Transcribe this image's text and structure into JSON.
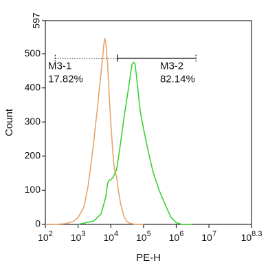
{
  "chart_data": {
    "type": "histogram",
    "title": "",
    "xlabel": "PE-H",
    "ylabel": "Count",
    "x_scale": "log10",
    "xlim": [
      100,
      199526231
    ],
    "ylim": [
      0,
      597
    ],
    "x_ticks": [
      {
        "value": 100,
        "base": "10",
        "exp": "2"
      },
      {
        "value": 1000,
        "base": "10",
        "exp": "3"
      },
      {
        "value": 10000,
        "base": "10",
        "exp": "4"
      },
      {
        "value": 100000,
        "base": "10",
        "exp": "5"
      },
      {
        "value": 1000000,
        "base": "10",
        "exp": "6"
      },
      {
        "value": 10000000,
        "base": "10",
        "exp": "7"
      },
      {
        "value": 199526231,
        "base": "10",
        "exp": "8.3"
      }
    ],
    "y_ticks": [
      0,
      100,
      200,
      300,
      400,
      500,
      597
    ],
    "series": [
      {
        "color": "#e8a36a",
        "x": [
          100,
          200,
          400,
          700,
          1000,
          1500,
          2000,
          2500,
          3000,
          3500,
          4000,
          4500,
          5000,
          5500,
          6000,
          6500,
          7000,
          7500,
          8000,
          8500,
          9000,
          10000,
          11000,
          12000,
          13000,
          14000,
          15000,
          17000,
          20000,
          25000,
          30000,
          35000,
          40000,
          50000,
          70000,
          100000
        ],
        "y": [
          0,
          0,
          2,
          8,
          20,
          50,
          110,
          180,
          240,
          300,
          350,
          400,
          440,
          480,
          520,
          545,
          535,
          500,
          470,
          420,
          370,
          300,
          240,
          190,
          160,
          150,
          140,
          100,
          60,
          25,
          10,
          5,
          3,
          1,
          0,
          0
        ]
      },
      {
        "color": "#39d130",
        "x": [
          1000,
          3000,
          5000,
          7000,
          8000,
          9000,
          10000,
          12000,
          15000,
          20000,
          25000,
          30000,
          35000,
          40000,
          45000,
          50000,
          55000,
          60000,
          70000,
          80000,
          100000,
          150000,
          200000,
          300000,
          500000,
          700000,
          1000000,
          1500000,
          3000000
        ],
        "y": [
          0,
          10,
          30,
          80,
          120,
          130,
          130,
          140,
          160,
          240,
          310,
          360,
          400,
          440,
          470,
          475,
          470,
          440,
          380,
          330,
          280,
          200,
          150,
          100,
          50,
          20,
          5,
          0,
          0
        ]
      }
    ],
    "gates": [
      {
        "label": "M3-1",
        "percent": "17.82%",
        "range": [
          200,
          16000
        ],
        "bar_y": 487,
        "end_bar_top": 497,
        "end_bar_bottom": 477,
        "line_style": "dotted"
      },
      {
        "label": "M3-2",
        "percent": "82.14%",
        "range": [
          16000,
          4000000
        ],
        "bar_y": 487,
        "end_bar_top": 497,
        "end_bar_bottom": 477,
        "line_style": "solid"
      }
    ],
    "grid": false,
    "legend": "none"
  }
}
